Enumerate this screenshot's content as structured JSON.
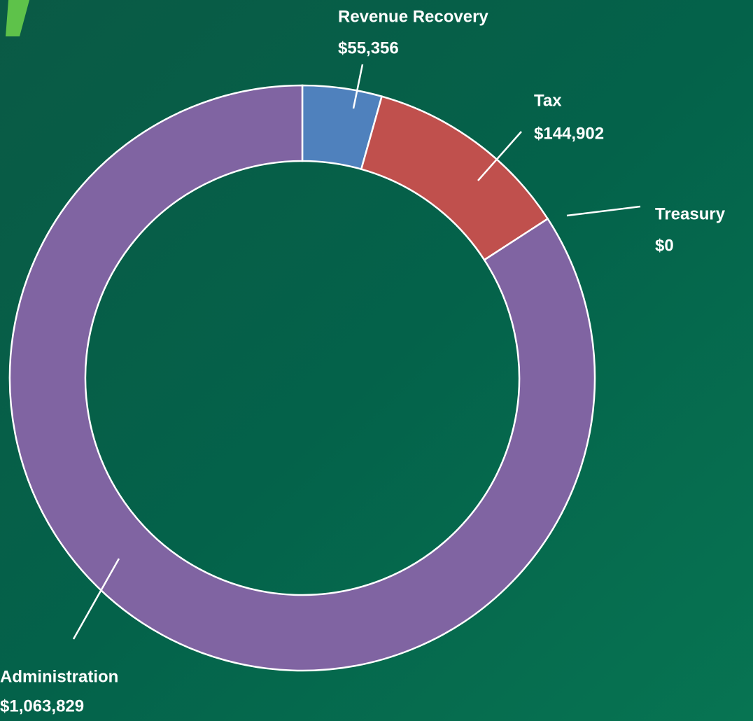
{
  "chart_data": {
    "type": "donut",
    "categories": [
      "Revenue Recovery",
      "Tax",
      "Treasury",
      "Administration"
    ],
    "values": [
      55356,
      144902,
      0,
      1063829
    ],
    "value_labels": [
      "$55,356",
      "$144,902",
      "$0",
      "$1,063,829"
    ],
    "colors": [
      "#4f81bd",
      "#c0504d",
      "#8064a2",
      "#8064a2"
    ]
  }
}
